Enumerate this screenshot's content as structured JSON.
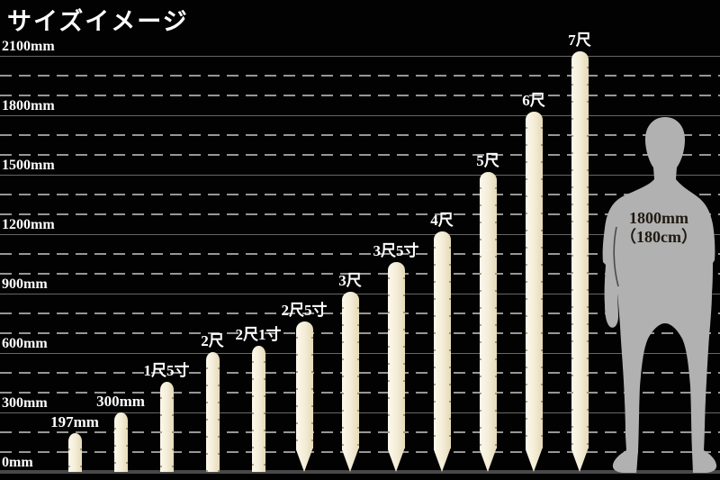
{
  "title": "サイズイメージ",
  "chart_data": {
    "type": "bar",
    "title": "サイズイメージ",
    "unit": "mm",
    "ylim": [
      0,
      2200
    ],
    "grid": "on",
    "yticks": [
      {
        "mm": 0,
        "label": "0mm"
      },
      {
        "mm": 300,
        "label": "300mm"
      },
      {
        "mm": 600,
        "label": "600mm"
      },
      {
        "mm": 900,
        "label": "900mm"
      },
      {
        "mm": 1200,
        "label": "1200mm"
      },
      {
        "mm": 1500,
        "label": "1500mm"
      },
      {
        "mm": 1800,
        "label": "1800mm"
      },
      {
        "mm": 2100,
        "label": "2100mm"
      }
    ],
    "minor_grid_step_mm": 100,
    "bars": [
      {
        "label": "197mm",
        "mm": 197,
        "pointed": false
      },
      {
        "label": "300mm",
        "mm": 300,
        "pointed": false
      },
      {
        "label": "1尺5寸",
        "mm": 455,
        "pointed": false
      },
      {
        "label": "2尺",
        "mm": 606,
        "pointed": false
      },
      {
        "label": "2尺1寸",
        "mm": 636,
        "pointed": false
      },
      {
        "label": "2尺5寸",
        "mm": 758,
        "pointed": true
      },
      {
        "label": "3尺",
        "mm": 909,
        "pointed": true
      },
      {
        "label": "3尺5寸",
        "mm": 1061,
        "pointed": true
      },
      {
        "label": "4尺",
        "mm": 1212,
        "pointed": true
      },
      {
        "label": "5尺",
        "mm": 1515,
        "pointed": true
      },
      {
        "label": "6尺",
        "mm": 1818,
        "pointed": true
      },
      {
        "label": "7尺",
        "mm": 2121,
        "pointed": true
      }
    ],
    "reference_figure": {
      "label_line1": "1800mm",
      "label_line2": "（180cm）",
      "height_mm": 1800
    }
  },
  "colors": {
    "bg": "#020202",
    "text": "#ffffff",
    "grid_major": "#666666",
    "grid_minor": "#969696",
    "baseline": "#484848",
    "stake": "#f4edd8",
    "stake_hi": "#fcf8ec",
    "stake_lo": "#e5dab8",
    "figure": "#b1b1b1",
    "figure_text": "#201a12"
  }
}
